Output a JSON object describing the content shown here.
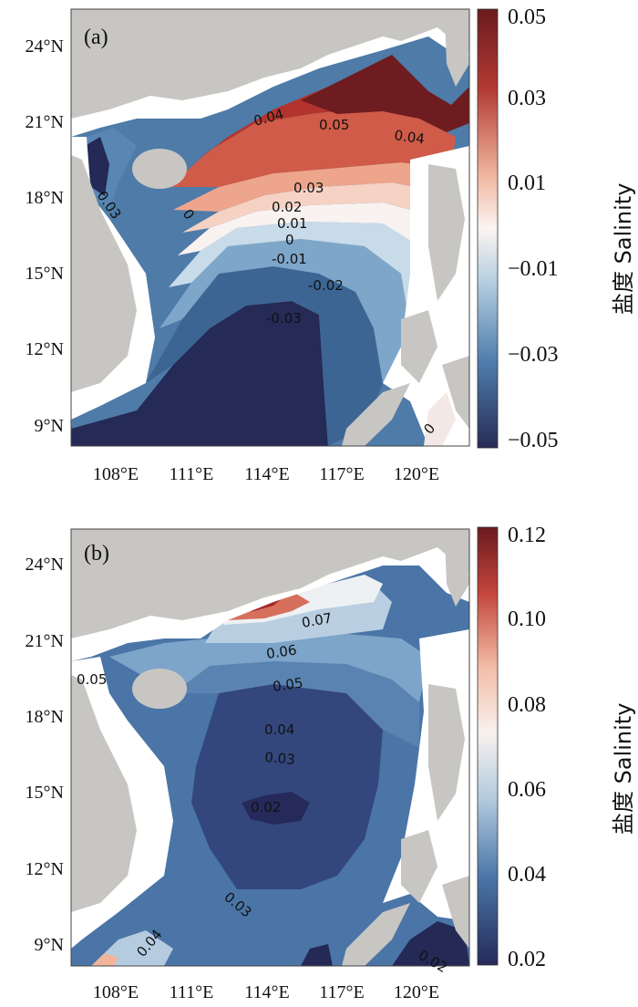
{
  "panels": [
    {
      "id": "a",
      "panel_label": "(a)",
      "y_ticks": [
        "24°N",
        "21°N",
        "18°N",
        "15°N",
        "12°N",
        "9°N"
      ],
      "x_ticks": [
        "108°E",
        "111°E",
        "114°E",
        "117°E",
        "120°E"
      ],
      "colorbar": {
        "ticks": [
          "0.05",
          "0.03",
          "0.01",
          "−0.01",
          "−0.03",
          "−0.05"
        ],
        "title": "盐度 Salinity",
        "colors": [
          "#bd3a32",
          "#fdf4ef",
          "#2d2f5a"
        ]
      },
      "contour_labels": [
        "0.04",
        "0.05",
        "0.04",
        "0.03",
        "0.02",
        "0.01",
        "0",
        "-0.01",
        "-0.02",
        "-0.03",
        "0.03",
        "0",
        "0"
      ]
    },
    {
      "id": "b",
      "panel_label": "(b)",
      "y_ticks": [
        "24°N",
        "21°N",
        "18°N",
        "15°N",
        "12°N",
        "9°N"
      ],
      "x_ticks": [
        "108°E",
        "111°E",
        "114°E",
        "117°E",
        "120°E"
      ],
      "colorbar": {
        "ticks": [
          "0.12",
          "0.10",
          "0.08",
          "0.06",
          "0.04",
          "0.02"
        ],
        "title": "盐度 Salinity",
        "colors": [
          "#b6382f",
          "#fbf3ef",
          "#2a2f5e"
        ]
      },
      "contour_labels": [
        "0.07",
        "0.06",
        "0.05",
        "0.05",
        "0.04",
        "0.03",
        "0.02",
        "0.03",
        "0.04",
        "0.02"
      ]
    }
  ],
  "colors": {
    "land": "#c9c7c4",
    "coast": "#ffffff",
    "frame": "#333333"
  }
}
